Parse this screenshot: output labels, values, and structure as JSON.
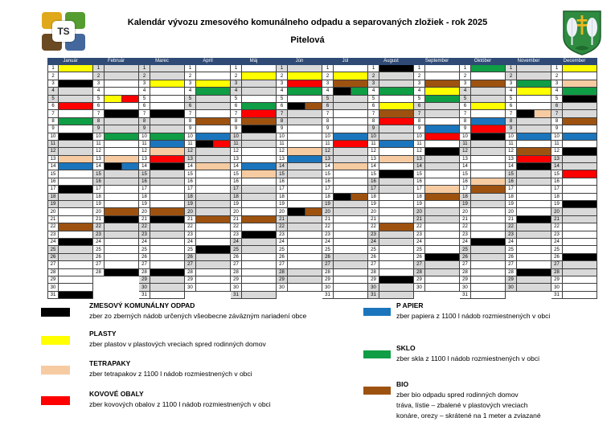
{
  "header": {
    "title": "Kalendár vývozu zmesového komunálneho odpadu a separovaných zložiek - rok 2025",
    "subtitle": "Pitelová",
    "logo_text": "TS"
  },
  "palette": {
    "K": "#000000",
    "P": "#FFFF00",
    "T": "#F6CBA2",
    "M": "#FF0000",
    "B": "#1B75BC",
    "S": "#0F9D45",
    "O": "#9E5210",
    "W": "#FFFFFF",
    "G": "#D9D9D9",
    "header_band": "#2E4A75",
    "grid_line": "#3F3F3F"
  },
  "calendar": {
    "months": [
      {
        "name": "Január",
        "days": [
          "P",
          "W",
          "K",
          "G",
          "G",
          "M",
          "W",
          "S",
          "W",
          "K",
          "G",
          "G",
          "T",
          "B",
          "W",
          "W",
          "K",
          "G",
          "G",
          "W",
          "W",
          "O",
          "W",
          "K",
          "G",
          "G",
          "W",
          "W",
          "W",
          "W",
          "K"
        ]
      },
      {
        "name": "Február",
        "days": [
          "G",
          "G",
          "W",
          "W",
          "P+M",
          "W",
          "K",
          "G",
          "G",
          "S",
          "W",
          "W",
          "T",
          "K+B",
          "G",
          "G",
          "W",
          "W",
          "W",
          "O",
          "K",
          "G",
          "G",
          "W",
          "W",
          "W",
          "W",
          "K"
        ]
      },
      {
        "name": "Marec",
        "days": [
          "G",
          "G",
          "P",
          "W",
          "W",
          "W",
          "K",
          "G",
          "G",
          "S",
          "B",
          "T",
          "M",
          "K",
          "G",
          "G",
          "W",
          "W",
          "W",
          "O",
          "K",
          "G",
          "G",
          "W",
          "W",
          "W",
          "W",
          "K",
          "G",
          "G",
          "W"
        ]
      },
      {
        "name": "Apríl",
        "days": [
          "W",
          "W",
          "P",
          "S",
          "G",
          "G",
          "W",
          "O",
          "W",
          "B",
          "K+M",
          "G",
          "G",
          "T",
          "W",
          "W",
          "W",
          "G",
          "G",
          "G",
          "O",
          "W",
          "W",
          "W",
          "K",
          "G",
          "G",
          "W",
          "W",
          "W"
        ]
      },
      {
        "name": "Máj",
        "days": [
          "W",
          "P",
          "G",
          "G",
          "W",
          "S",
          "M",
          "O",
          "K",
          "G",
          "G",
          "W",
          "W",
          "B",
          "T",
          "W",
          "G",
          "G",
          "W",
          "W",
          "O",
          "W",
          "K",
          "G",
          "G",
          "W",
          "W",
          "W",
          "W",
          "W",
          "G"
        ]
      },
      {
        "name": "Jún",
        "days": [
          "G",
          "P",
          "M",
          "S",
          "W",
          "K+O",
          "G",
          "G",
          "W",
          "W",
          "W",
          "T",
          "B",
          "G",
          "G",
          "W",
          "W",
          "W",
          "W",
          "K+O",
          "G",
          "G",
          "W",
          "W",
          "W",
          "W",
          "W",
          "G",
          "G",
          "W"
        ]
      },
      {
        "name": "Júl",
        "days": [
          "W",
          "P",
          "O",
          "K+S",
          "G",
          "G",
          "W",
          "W",
          "W",
          "B",
          "M",
          "G",
          "G",
          "T",
          "W",
          "W",
          "W",
          "K+O",
          "G",
          "G",
          "W",
          "W",
          "W",
          "W",
          "W",
          "G",
          "G",
          "W",
          "W",
          "W",
          "W"
        ]
      },
      {
        "name": "August",
        "days": [
          "K",
          "G",
          "G",
          "S",
          "W",
          "P",
          "O",
          "M",
          "G",
          "G",
          "B",
          "W",
          "T",
          "W",
          "K",
          "G",
          "G",
          "W",
          "W",
          "W",
          "W",
          "O",
          "G",
          "G",
          "W",
          "W",
          "W",
          "W",
          "K",
          "G",
          "G"
        ]
      },
      {
        "name": "September",
        "days": [
          "W",
          "W",
          "O",
          "P",
          "S",
          "G",
          "G",
          "W",
          "B",
          "M",
          "W",
          "K",
          "G",
          "G",
          "W",
          "W",
          "T",
          "O",
          "W",
          "G",
          "G",
          "W",
          "W",
          "W",
          "W",
          "K",
          "G",
          "G",
          "W",
          "W"
        ]
      },
      {
        "name": "Október",
        "days": [
          "S",
          "W",
          "O",
          "G",
          "G",
          "P",
          "W",
          "B",
          "M",
          "K",
          "G",
          "G",
          "W",
          "W",
          "W",
          "T",
          "O",
          "G",
          "G",
          "W",
          "W",
          "W",
          "W",
          "K",
          "G",
          "G",
          "W",
          "W",
          "W",
          "W",
          "W"
        ]
      },
      {
        "name": "November",
        "days": [
          "G",
          "G",
          "S",
          "P",
          "W",
          "W",
          "K+T",
          "G",
          "G",
          "B",
          "W",
          "O",
          "M",
          "K",
          "G",
          "G",
          "W",
          "W",
          "W",
          "W",
          "K",
          "G",
          "G",
          "W",
          "W",
          "W",
          "W",
          "K",
          "G",
          "G"
        ]
      },
      {
        "name": "December",
        "days": [
          "P",
          "W",
          "T",
          "S",
          "K",
          "G",
          "G",
          "O",
          "W",
          "B",
          "W",
          "K",
          "G",
          "G",
          "M",
          "W",
          "W",
          "W",
          "K",
          "G",
          "G",
          "W",
          "W",
          "W",
          "W",
          "K",
          "G",
          "G",
          "W",
          "W",
          "W"
        ]
      }
    ]
  },
  "legend_left": [
    {
      "code": "K",
      "title": "ZMESOVÝ KOMUNÁLNY ODPAD",
      "lines": [
        "zber zo zberných nádob  určených všeobecne záväzným nariadení obce"
      ]
    },
    {
      "code": "P",
      "title": "PLASTY",
      "lines": [
        "zber plastov v plastových vreciach spred rodinných domov"
      ]
    },
    {
      "code": "T",
      "title": "TETRAPAKY",
      "lines": [
        "zber tetrapakov  z 1100 l nádob rozmiestnených v obci"
      ]
    },
    {
      "code": "M",
      "title": "KOVOVÉ OBALY",
      "lines": [
        "zber kovových obalov  z 1100 l  nádob rozmiestnených v  obci"
      ]
    }
  ],
  "legend_right": [
    {
      "code": "B",
      "title": "P APIER",
      "lines": [
        "zber papiera z 1100 l nádob rozmiestnených v obci"
      ]
    },
    {
      "code": "S",
      "title": "SKLO",
      "lines": [
        "zber skla z 1100 l nádob rozmiestnených v obci"
      ]
    },
    {
      "code": "O",
      "title": "BIO",
      "lines": [
        " zber bio odpadu spred rodinných domov",
        "tráva, lístie – zbalené v plastových vreciach",
        "konáre, orezy – skrátené na 1 meter a zviazané"
      ]
    }
  ]
}
